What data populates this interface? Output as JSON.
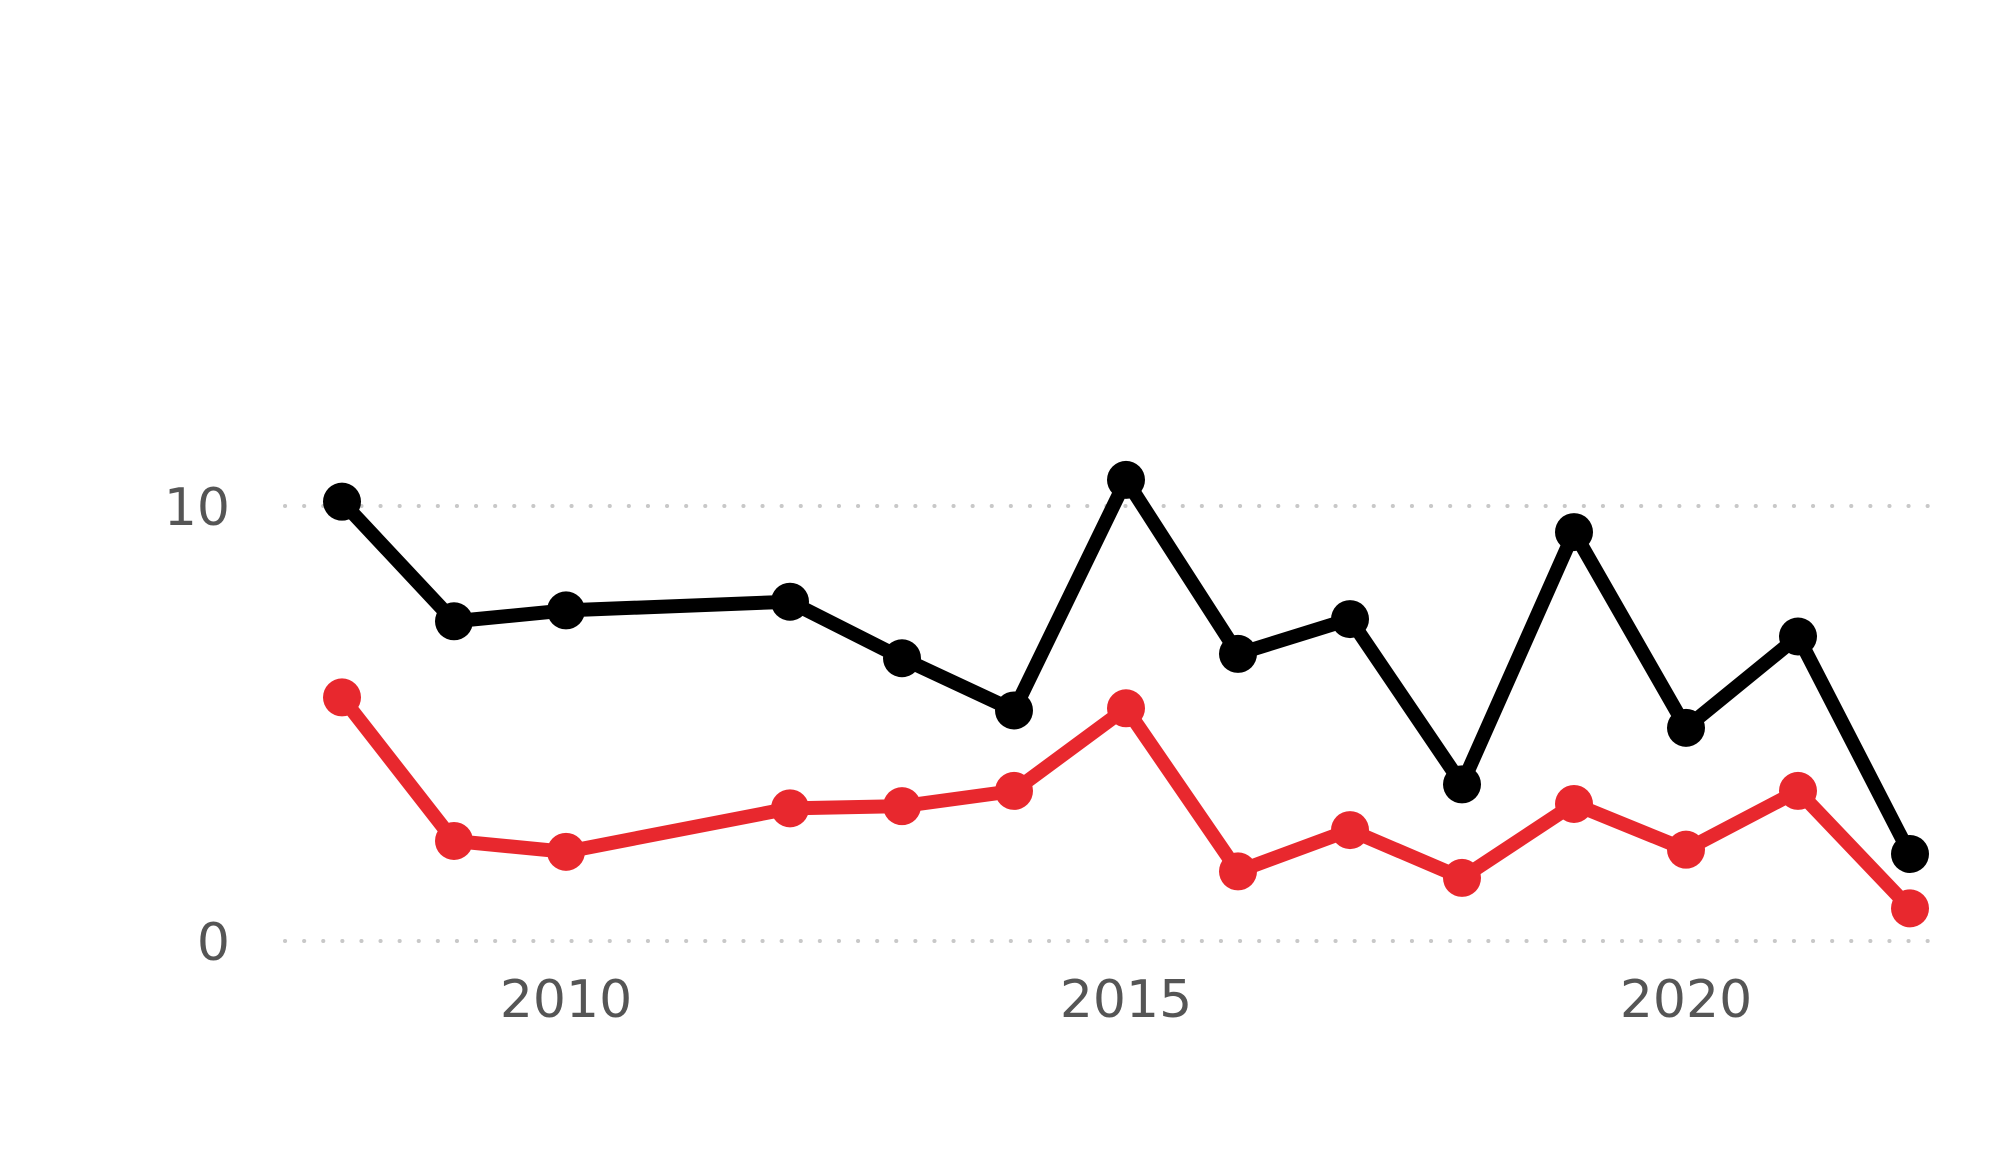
{
  "chart_data": {
    "type": "line",
    "title": "",
    "xlabel": "",
    "ylabel": "",
    "x": [
      2008,
      2009,
      2010,
      2012,
      2013,
      2014,
      2015,
      2016,
      2017,
      2018,
      2019,
      2020,
      2021,
      2022
    ],
    "series": [
      {
        "color": "#000000",
        "values": [
          10.1,
          7.35,
          7.6,
          7.8,
          6.5,
          5.3,
          10.6,
          6.6,
          7.4,
          3.6,
          9.4,
          4.9,
          7.0,
          2.0
        ]
      },
      {
        "color": "#e8282e",
        "values": [
          5.6,
          2.3,
          2.05,
          3.05,
          3.1,
          3.45,
          5.35,
          1.6,
          2.55,
          1.45,
          3.15,
          2.1,
          3.45,
          0.75
        ]
      }
    ],
    "x_ticks": [
      {
        "value": 2010,
        "label": "2010"
      },
      {
        "value": 2015,
        "label": "2015"
      },
      {
        "value": 2020,
        "label": "2020"
      }
    ],
    "y_ticks": [
      {
        "value": 0,
        "label": "0"
      },
      {
        "value": 10,
        "label": "10"
      }
    ],
    "xlim": [
      2008,
      2022
    ],
    "ylim": [
      0,
      20
    ],
    "grid": "horizontal-dotted",
    "legend": "none"
  }
}
